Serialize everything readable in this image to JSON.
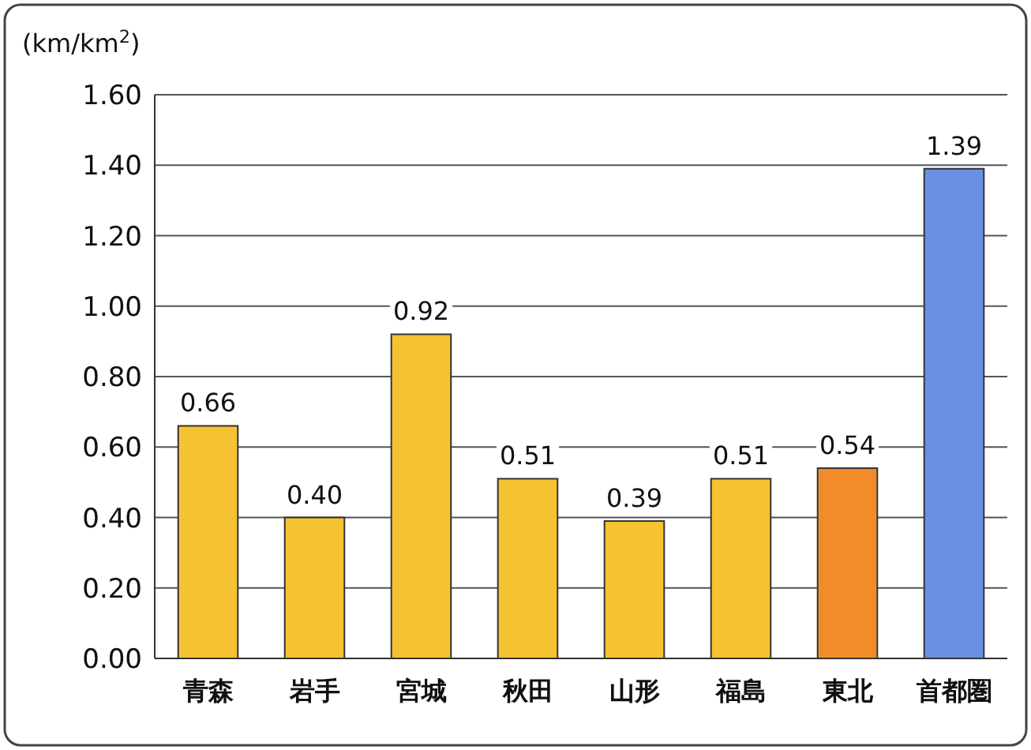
{
  "chart_data": {
    "type": "bar",
    "ylabel": "(km/km$^{2}$)",
    "categories": [
      "青森",
      "岩手",
      "宮城",
      "秋田",
      "山形",
      "福島",
      "東北",
      "首都圏"
    ],
    "values": [
      0.66,
      0.4,
      0.92,
      0.51,
      0.39,
      0.51,
      0.54,
      1.39
    ],
    "colors": [
      "#f5c232",
      "#f5c232",
      "#f5c232",
      "#f5c232",
      "#f5c232",
      "#f5c232",
      "#f28c2a",
      "#6b8fe3"
    ],
    "value_labels": [
      "0.66",
      "0.40",
      "0.92",
      "0.51",
      "0.39",
      "0.51",
      "0.54",
      "1.39"
    ],
    "ylim": [
      0,
      1.6
    ],
    "yticks": [
      {
        "value": 0,
        "label": "0.00"
      },
      {
        "value": 0.2,
        "label": "0.20"
      },
      {
        "value": 0.4,
        "label": "0.40"
      },
      {
        "value": 0.6,
        "label": "0.60"
      },
      {
        "value": 0.8,
        "label": "0.80"
      },
      {
        "value": 1,
        "label": "1.00"
      },
      {
        "value": 1.2,
        "label": "1.20"
      },
      {
        "value": 1.4,
        "label": "1.40"
      },
      {
        "value": 1.6,
        "label": "1.60"
      }
    ],
    "grid": "y"
  }
}
